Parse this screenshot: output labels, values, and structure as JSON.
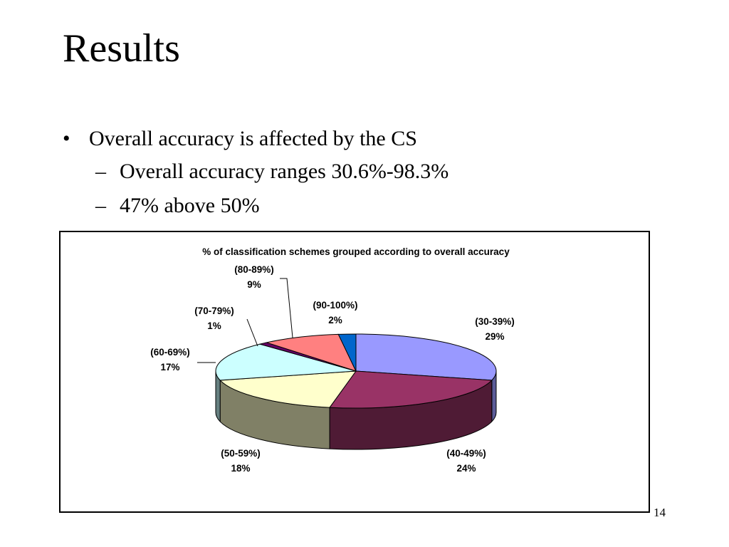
{
  "slide": {
    "title": "Results",
    "bullets": [
      {
        "marker": "•",
        "text": "Overall accuracy is affected by the CS"
      },
      {
        "marker": "–",
        "text": "Overall accuracy ranges 30.6%-98.3%"
      },
      {
        "marker": "–",
        "text": "47% above 50%"
      }
    ],
    "page_number": "14"
  },
  "chart_data": {
    "type": "pie",
    "title": "% of classification schemes grouped according to overall accuracy",
    "three_d": true,
    "slices": [
      {
        "label": "(30-39%)",
        "value": 29,
        "value_label": "29%",
        "color": "#9999FF",
        "side_color": "#5C5C99"
      },
      {
        "label": "(40-49%)",
        "value": 24,
        "value_label": "24%",
        "color": "#993366",
        "side_color": "#4F1B35"
      },
      {
        "label": "(50-59%)",
        "value": 18,
        "value_label": "18%",
        "color": "#FFFFCC",
        "side_color": "#808066"
      },
      {
        "label": "(60-69%)",
        "value": 17,
        "value_label": "17%",
        "color": "#CCFFFF",
        "side_color": "#668080"
      },
      {
        "label": "(70-79%)",
        "value": 1,
        "value_label": "1%",
        "color": "#660066",
        "side_color": "#330033"
      },
      {
        "label": "(80-89%)",
        "value": 9,
        "value_label": "9%",
        "color": "#FF8080",
        "side_color": "#804040"
      },
      {
        "label": "(90-100%)",
        "value": 2,
        "value_label": "2%",
        "color": "#0066CC",
        "side_color": "#003366"
      }
    ]
  }
}
